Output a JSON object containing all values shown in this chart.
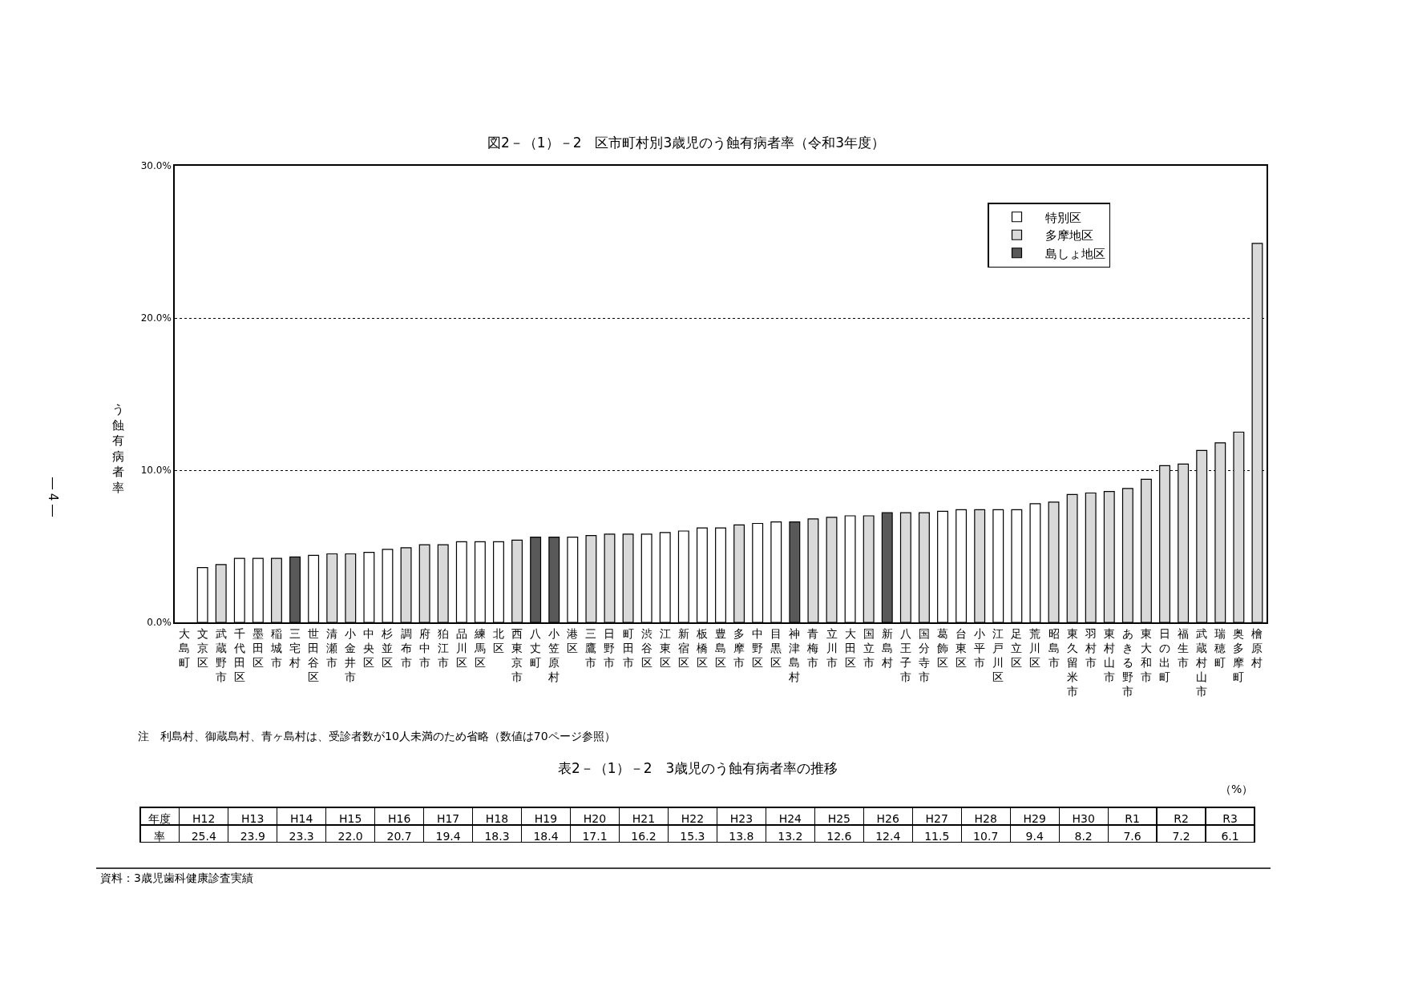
{
  "chart_data": [
    {
      "type": "bar",
      "title": "図2－（1）－2　区市町村別3歳児のう蝕有病者率（令和3年度）",
      "ylabel": "う蝕有病者率",
      "categories": [
        "大島町",
        "文京区",
        "武蔵野市",
        "千代田区",
        "墨田区",
        "稲城市",
        "三宅村",
        "世田谷区",
        "清瀬市",
        "小金井市",
        "中央区",
        "杉並区",
        "調布市",
        "府中市",
        "狛江市",
        "品川区",
        "練馬区",
        "北区",
        "西東京市",
        "八丈町",
        "小笠原村",
        "港区",
        "三鷹市",
        "日野市",
        "町田市",
        "渋谷区",
        "江東区",
        "新宿区",
        "板橋区",
        "豊島区",
        "多摩市",
        "中野区",
        "目黒区",
        "神津島村",
        "青梅市",
        "立川市",
        "大田区",
        "国立市",
        "新島村",
        "八王子市",
        "国分寺市",
        "葛飾区",
        "台東区",
        "小平市",
        "江戸川区",
        "足立区",
        "荒川区",
        "昭島市",
        "東久留米市",
        "羽村市",
        "東村山市",
        "あきる野市",
        "東大和市",
        "日の出町",
        "福生市",
        "武蔵村山市",
        "瑞穂町",
        "奥多摩町",
        "檜原村"
      ],
      "series": [
        {
          "name": "特別区",
          "color": "#ffffff",
          "values": [
            null,
            3.6,
            null,
            4.2,
            4.2,
            null,
            null,
            4.4,
            null,
            null,
            4.6,
            4.8,
            null,
            null,
            null,
            5.3,
            5.3,
            5.3,
            null,
            null,
            null,
            5.6,
            null,
            null,
            null,
            5.8,
            5.9,
            6.0,
            6.2,
            6.2,
            null,
            6.5,
            6.6,
            null,
            null,
            null,
            7.0,
            null,
            null,
            null,
            null,
            7.3,
            7.4,
            null,
            7.4,
            7.4,
            7.8,
            null,
            null,
            null,
            null,
            null,
            null,
            null,
            null,
            null,
            null,
            null,
            null
          ]
        },
        {
          "name": "多摩地区",
          "color": "#d9d9d9",
          "values": [
            null,
            null,
            3.8,
            null,
            null,
            4.2,
            null,
            null,
            4.5,
            4.5,
            null,
            null,
            4.9,
            5.1,
            5.1,
            null,
            null,
            null,
            5.4,
            null,
            null,
            null,
            5.7,
            5.8,
            5.8,
            null,
            null,
            null,
            null,
            null,
            6.4,
            null,
            null,
            null,
            6.8,
            6.9,
            null,
            7.0,
            null,
            7.2,
            7.2,
            null,
            null,
            7.4,
            null,
            null,
            null,
            7.9,
            8.4,
            8.5,
            8.6,
            8.8,
            9.4,
            10.3,
            10.4,
            11.3,
            11.8,
            12.5,
            24.9
          ]
        },
        {
          "name": "島しょ地区",
          "color": "#595959",
          "values": [
            null,
            null,
            null,
            null,
            null,
            null,
            4.3,
            null,
            null,
            null,
            null,
            null,
            null,
            null,
            null,
            null,
            null,
            null,
            null,
            5.6,
            5.6,
            null,
            null,
            null,
            null,
            null,
            null,
            null,
            null,
            null,
            null,
            null,
            null,
            6.6,
            null,
            null,
            null,
            null,
            7.2,
            null,
            null,
            null,
            null,
            null,
            null,
            null,
            null,
            null,
            null,
            null,
            null,
            null,
            null,
            null,
            null,
            null,
            null,
            null,
            null
          ]
        }
      ],
      "ylim": [
        0,
        30
      ],
      "yticks": [
        {
          "value": 0,
          "label": "0.0%"
        },
        {
          "value": 10,
          "label": "10.0%"
        },
        {
          "value": 20,
          "label": "20.0%"
        },
        {
          "value": 30,
          "label": "30.0%"
        }
      ],
      "grid": "y",
      "legend": "top right",
      "annotations": [
        "注　利島村、御蔵島村、青ヶ島村は、受診者数が10人未満のため省略（数値は70ページ参照）",
        "資料：3歳児歯科健康診査実績",
        "― 4 ―"
      ]
    },
    {
      "type": "other",
      "title": "表2－（1）－2　3歳児のう蝕有病者率の推移",
      "xlabel": "年度",
      "ylabel": "率",
      "categories": [
        "H12",
        "H13",
        "H14",
        "H15",
        "H16",
        "H17",
        "H18",
        "H19",
        "H20",
        "H21",
        "H22",
        "H23",
        "H24",
        "H25",
        "H26",
        "H27",
        "H28",
        "H29",
        "H30",
        "R1",
        "R2",
        "R3"
      ],
      "value_labels": [
        "25.4",
        "23.9",
        "23.3",
        "22.0",
        "20.7",
        "19.4",
        "18.3",
        "18.4",
        "17.1",
        "16.2",
        "15.3",
        "13.8",
        "13.2",
        "12.6",
        "12.4",
        "11.5",
        "10.7",
        "9.4",
        "8.2",
        "7.6",
        "7.2",
        "6.1"
      ],
      "annotations": [
        "（%）"
      ]
    }
  ]
}
